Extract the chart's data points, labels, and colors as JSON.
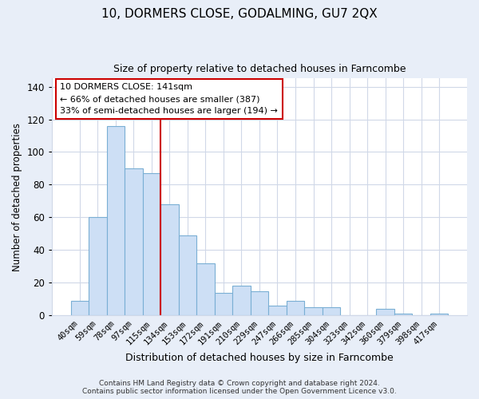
{
  "title": "10, DORMERS CLOSE, GODALMING, GU7 2QX",
  "subtitle": "Size of property relative to detached houses in Farncombe",
  "xlabel": "Distribution of detached houses by size in Farncombe",
  "ylabel": "Number of detached properties",
  "footer_line1": "Contains HM Land Registry data © Crown copyright and database right 2024.",
  "footer_line2": "Contains public sector information licensed under the Open Government Licence v3.0.",
  "bar_labels": [
    "40sqm",
    "59sqm",
    "78sqm",
    "97sqm",
    "115sqm",
    "134sqm",
    "153sqm",
    "172sqm",
    "191sqm",
    "210sqm",
    "229sqm",
    "247sqm",
    "266sqm",
    "285sqm",
    "304sqm",
    "323sqm",
    "342sqm",
    "360sqm",
    "379sqm",
    "398sqm",
    "417sqm"
  ],
  "bar_values": [
    9,
    60,
    116,
    90,
    87,
    68,
    49,
    32,
    14,
    18,
    15,
    6,
    9,
    5,
    5,
    0,
    0,
    4,
    1,
    0,
    1
  ],
  "bar_color": "#cddff5",
  "bar_edge_color": "#7aafd4",
  "property_line_color": "#cc0000",
  "annotation_line1": "10 DORMERS CLOSE: 141sqm",
  "annotation_line2": "← 66% of detached houses are smaller (387)",
  "annotation_line3": "33% of semi-detached houses are larger (194) →",
  "annotation_box_color": "#ffffff",
  "annotation_box_edge_color": "#cc0000",
  "ylim": [
    0,
    145
  ],
  "yticks": [
    0,
    20,
    40,
    60,
    80,
    100,
    120,
    140
  ],
  "grid_color": "#d0d8e8",
  "background_color": "#e8eef8",
  "plot_bg_color": "#ffffff",
  "property_line_bin": 5
}
